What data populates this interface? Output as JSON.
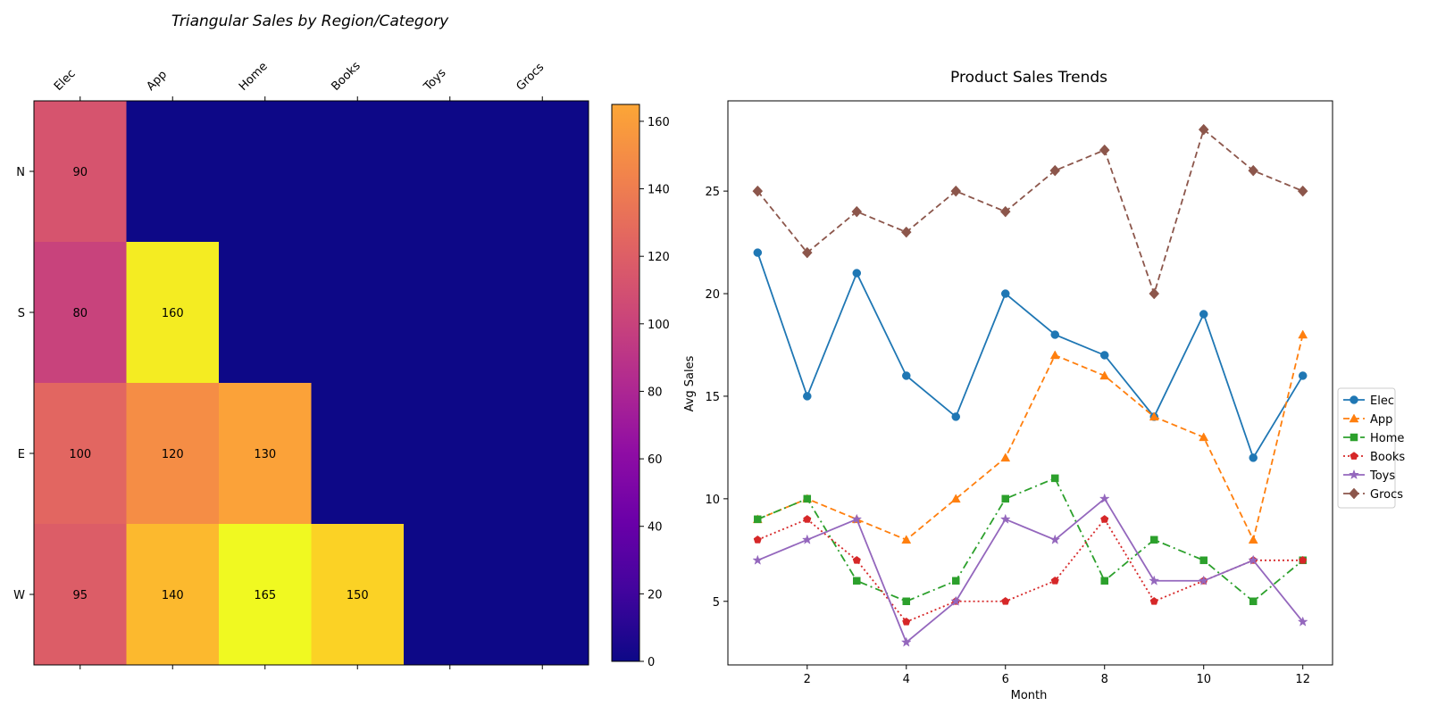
{
  "chart_data": [
    {
      "type": "heatmap",
      "title": "Triangular Sales by Region/Category",
      "xlabel": "",
      "ylabel": "",
      "x_categories": [
        "Elec",
        "App",
        "Home",
        "Books",
        "Toys",
        "Grocs"
      ],
      "y_categories": [
        "N",
        "S",
        "E",
        "W"
      ],
      "values": [
        [
          90,
          null,
          null,
          null,
          null,
          null
        ],
        [
          80,
          160,
          null,
          null,
          null,
          null
        ],
        [
          100,
          120,
          130,
          null,
          null,
          null
        ],
        [
          95,
          140,
          165,
          150,
          null,
          null
        ]
      ],
      "masked_value": 0,
      "colormap": "plasma",
      "colorbar": {
        "range": [
          0,
          165
        ],
        "ticks": [
          0,
          20,
          40,
          60,
          80,
          100,
          120,
          140,
          160
        ]
      }
    },
    {
      "type": "line",
      "title": "Product Sales Trends",
      "xlabel": "Month",
      "ylabel": "Avg Sales",
      "x": [
        1,
        2,
        3,
        4,
        5,
        6,
        7,
        8,
        9,
        10,
        11,
        12
      ],
      "xlim": [
        0.4,
        12.6
      ],
      "ylim": [
        1.9,
        29.4
      ],
      "xticks": [
        2,
        4,
        6,
        8,
        10,
        12
      ],
      "yticks": [
        5,
        10,
        15,
        20,
        25
      ],
      "grid": false,
      "legend_position": "center-right outside",
      "series": [
        {
          "name": "Elec",
          "values": [
            22,
            15,
            21,
            16,
            14,
            20,
            18,
            17,
            14,
            19,
            12,
            16
          ],
          "color": "#1f77b4",
          "marker": "circle",
          "dash": "solid"
        },
        {
          "name": "App",
          "values": [
            9,
            10,
            9,
            8,
            10,
            12,
            17,
            16,
            14,
            13,
            8,
            18
          ],
          "color": "#ff7f0e",
          "marker": "triangle",
          "dash": "dashed"
        },
        {
          "name": "Home",
          "values": [
            9,
            10,
            6,
            5,
            6,
            10,
            11,
            6,
            8,
            7,
            5,
            7
          ],
          "color": "#2ca02c",
          "marker": "square",
          "dash": "dashdot"
        },
        {
          "name": "Books",
          "values": [
            8,
            9,
            7,
            4,
            5,
            5,
            6,
            9,
            5,
            6,
            7,
            7
          ],
          "color": "#d62728",
          "marker": "pentagon",
          "dash": "dotted"
        },
        {
          "name": "Toys",
          "values": [
            7,
            8,
            9,
            3,
            5,
            9,
            8,
            10,
            6,
            6,
            7,
            4
          ],
          "color": "#9467bd",
          "marker": "star",
          "dash": "solid"
        },
        {
          "name": "Grocs",
          "values": [
            25,
            22,
            24,
            23,
            25,
            24,
            26,
            27,
            20,
            28,
            26,
            25
          ],
          "color": "#8c564b",
          "marker": "diamond",
          "dash": "dashed"
        }
      ]
    }
  ]
}
